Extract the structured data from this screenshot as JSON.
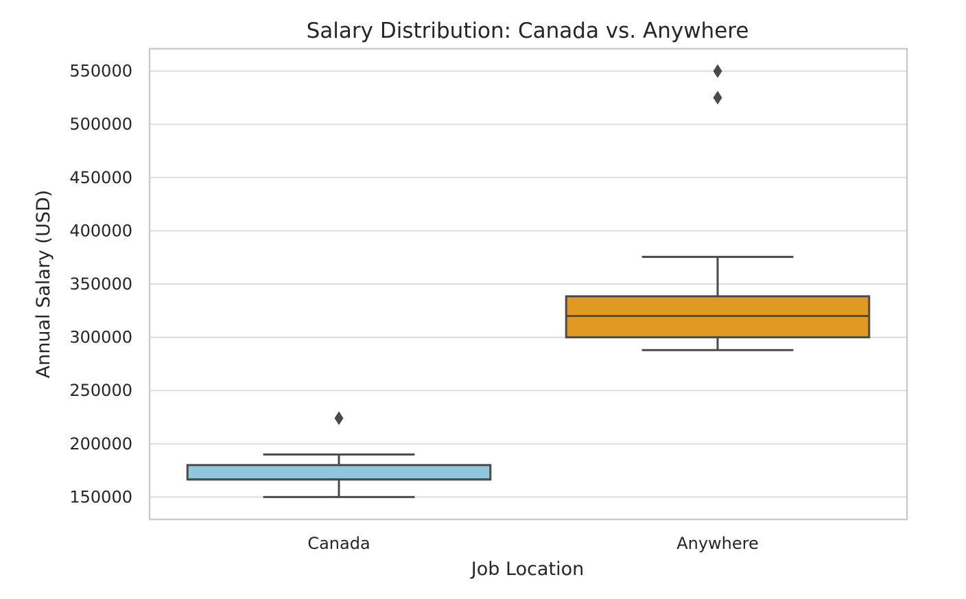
{
  "chart_data": {
    "type": "box",
    "title": "Salary Distribution: Canada vs. Anywhere",
    "xlabel": "Job Location",
    "ylabel": "Annual Salary (USD)",
    "ylim": [
      129000,
      571000
    ],
    "yticks": [
      150000,
      200000,
      250000,
      300000,
      350000,
      400000,
      450000,
      500000,
      550000
    ],
    "grid": true,
    "categories": [
      "Canada",
      "Anywhere"
    ],
    "boxes": [
      {
        "category": "Canada",
        "color": "#92c6dd",
        "whisker_low": 150000,
        "q1": 166500,
        "median": 166500,
        "q3": 180000,
        "whisker_high": 190000,
        "outliers": [
          224000
        ]
      },
      {
        "category": "Anywhere",
        "color": "#e09a22",
        "whisker_low": 288000,
        "q1": 300000,
        "median": 320000,
        "q3": 338500,
        "whisker_high": 375500,
        "outliers": [
          525000,
          550000
        ]
      }
    ]
  }
}
